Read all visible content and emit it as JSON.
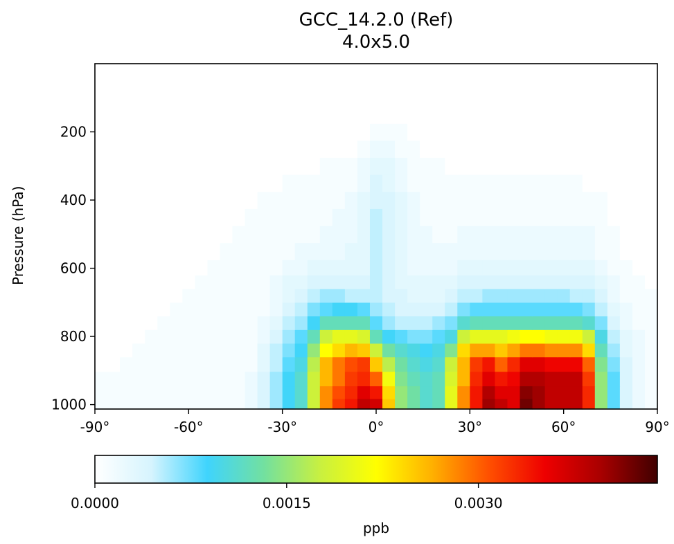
{
  "chart_data": {
    "type": "heatmap",
    "title": "GCC_14.2.0 (Ref)",
    "subtitle": "4.0x5.0",
    "ylabel": "Pressure (hPa)",
    "xlabel": "",
    "x_ticks": [
      "-90°",
      "-60°",
      "-30°",
      "0°",
      "30°",
      "60°",
      "90°"
    ],
    "x_tick_values": [
      -90,
      -60,
      -30,
      0,
      30,
      60,
      90
    ],
    "y_ticks": [
      "200",
      "400",
      "600",
      "800",
      "1000"
    ],
    "y_tick_values": [
      200,
      400,
      600,
      800,
      1000
    ],
    "x_range": [
      -90,
      90
    ],
    "y_range": [
      0,
      1013
    ],
    "y_inverted": true,
    "grid": false,
    "colormap": "WhGrYlRd",
    "colorbar": {
      "label": "ppb",
      "min": 0.0,
      "max": 0.0044,
      "tick_values": [
        0.0,
        0.0015,
        0.003
      ],
      "tick_labels": [
        "0.0000",
        "0.0015",
        "0.0030"
      ],
      "stops": [
        "#ffffff",
        "#d6f4fe",
        "#3fd4fd",
        "#72e0a0",
        "#c8f040",
        "#ffff00",
        "#ffb000",
        "#ff5000",
        "#ee0000",
        "#a80000",
        "#400000"
      ]
    },
    "columns_lat": [
      -88,
      -84,
      -80,
      -76,
      -72,
      -68,
      -64,
      -60,
      -56,
      -52,
      -48,
      -44,
      -40,
      -36,
      -32,
      -28,
      -24,
      -20,
      -16,
      -12,
      -8,
      -4,
      0,
      4,
      8,
      12,
      16,
      20,
      24,
      28,
      32,
      36,
      40,
      44,
      48,
      52,
      56,
      60,
      64,
      68,
      72,
      76,
      80,
      84,
      88
    ],
    "rows_pressure": [
      1000,
      965,
      925,
      880,
      840,
      800,
      760,
      720,
      680,
      640,
      600,
      550,
      500,
      450,
      400,
      350,
      300,
      250,
      200,
      150,
      100,
      50
    ],
    "values": [
      [
        0.0001,
        0.0001,
        0.0001,
        0.0001,
        0.0001,
        0.0001,
        0.0001,
        0.0001,
        0.0001,
        0.0001,
        0.0001,
        0.0001,
        0.0002,
        0.0004,
        0.0006,
        0.0009,
        0.0011,
        0.0018,
        0.0028,
        0.0032,
        0.0034,
        0.0038,
        0.0037,
        0.0025,
        0.0015,
        0.0013,
        0.0011,
        0.0012,
        0.002,
        0.0028,
        0.0034,
        0.004,
        0.0038,
        0.0036,
        0.0042,
        0.004,
        0.0038,
        0.0038,
        0.0038,
        0.0033,
        0.0015,
        0.0008,
        0.0004,
        0.0002,
        0.0001
      ],
      [
        0.0001,
        0.0001,
        0.0001,
        0.0001,
        0.0001,
        0.0001,
        0.0001,
        0.0001,
        0.0001,
        0.0001,
        0.0001,
        0.0001,
        0.0002,
        0.0004,
        0.0006,
        0.0009,
        0.0011,
        0.0018,
        0.0028,
        0.0031,
        0.0033,
        0.0036,
        0.0034,
        0.0024,
        0.0015,
        0.0013,
        0.0011,
        0.0012,
        0.002,
        0.0028,
        0.0034,
        0.0039,
        0.0036,
        0.0036,
        0.0041,
        0.004,
        0.0038,
        0.0038,
        0.0038,
        0.0033,
        0.0015,
        0.0008,
        0.0004,
        0.0002,
        0.0001
      ],
      [
        0.0001,
        0.0001,
        0.0001,
        0.0001,
        0.0001,
        0.0001,
        0.0001,
        0.0001,
        0.0001,
        0.0001,
        0.0001,
        0.0001,
        0.0002,
        0.0004,
        0.0006,
        0.0009,
        0.0011,
        0.0018,
        0.0026,
        0.0029,
        0.0032,
        0.0033,
        0.003,
        0.0021,
        0.0014,
        0.0012,
        0.0011,
        0.0012,
        0.0019,
        0.0026,
        0.0033,
        0.0036,
        0.0034,
        0.0035,
        0.0039,
        0.0039,
        0.0038,
        0.0038,
        0.0038,
        0.0032,
        0.0015,
        0.0008,
        0.0004,
        0.0002,
        0.0001
      ],
      [
        0.0,
        0.0,
        0.0001,
        0.0001,
        0.0001,
        0.0001,
        0.0001,
        0.0001,
        0.0001,
        0.0001,
        0.0001,
        0.0001,
        0.0001,
        0.0003,
        0.0005,
        0.0008,
        0.001,
        0.0017,
        0.0026,
        0.0029,
        0.0031,
        0.0032,
        0.0025,
        0.0017,
        0.0013,
        0.0011,
        0.001,
        0.0011,
        0.0018,
        0.0026,
        0.0032,
        0.0034,
        0.003,
        0.0033,
        0.0036,
        0.0036,
        0.0035,
        0.0035,
        0.0035,
        0.003,
        0.0014,
        0.0007,
        0.0004,
        0.0002,
        0.0001
      ],
      [
        0.0,
        0.0,
        0.0,
        0.0001,
        0.0001,
        0.0001,
        0.0001,
        0.0001,
        0.0001,
        0.0001,
        0.0001,
        0.0001,
        0.0001,
        0.0003,
        0.0005,
        0.0007,
        0.0009,
        0.0015,
        0.0022,
        0.0024,
        0.0026,
        0.0025,
        0.0018,
        0.0013,
        0.0011,
        0.001,
        0.0009,
        0.001,
        0.0014,
        0.0024,
        0.0027,
        0.0027,
        0.0025,
        0.0027,
        0.0029,
        0.0029,
        0.0028,
        0.0028,
        0.0028,
        0.0024,
        0.0012,
        0.0006,
        0.0003,
        0.0002,
        0.0001
      ],
      [
        0.0,
        0.0,
        0.0,
        0.0,
        0.0001,
        0.0001,
        0.0001,
        0.0001,
        0.0001,
        0.0001,
        0.0001,
        0.0001,
        0.0001,
        0.0002,
        0.0004,
        0.0006,
        0.0008,
        0.0012,
        0.0018,
        0.002,
        0.002,
        0.0019,
        0.0012,
        0.0009,
        0.0008,
        0.0007,
        0.0007,
        0.0008,
        0.001,
        0.0018,
        0.002,
        0.002,
        0.002,
        0.0021,
        0.0022,
        0.0022,
        0.0021,
        0.0021,
        0.0021,
        0.0018,
        0.001,
        0.0005,
        0.0003,
        0.0002,
        0.0001
      ],
      [
        0.0,
        0.0,
        0.0,
        0.0,
        0.0,
        0.0001,
        0.0001,
        0.0001,
        0.0001,
        0.0001,
        0.0001,
        0.0001,
        0.0001,
        0.0002,
        0.0003,
        0.0005,
        0.0006,
        0.0009,
        0.0012,
        0.0012,
        0.0012,
        0.0012,
        0.0008,
        0.0006,
        0.0005,
        0.0005,
        0.0005,
        0.0006,
        0.0007,
        0.0011,
        0.0012,
        0.0012,
        0.0012,
        0.0012,
        0.0012,
        0.0012,
        0.0012,
        0.0012,
        0.0012,
        0.0011,
        0.0007,
        0.0004,
        0.0002,
        0.0001,
        0.0001
      ],
      [
        0.0,
        0.0,
        0.0,
        0.0,
        0.0,
        0.0,
        0.0001,
        0.0001,
        0.0001,
        0.0001,
        0.0001,
        0.0001,
        0.0001,
        0.0001,
        0.0002,
        0.0004,
        0.0005,
        0.0007,
        0.0008,
        0.0009,
        0.0009,
        0.0008,
        0.0006,
        0.0005,
        0.0004,
        0.0004,
        0.0004,
        0.0004,
        0.0005,
        0.0007,
        0.0008,
        0.0008,
        0.0008,
        0.0008,
        0.0008,
        0.0008,
        0.0008,
        0.0008,
        0.0008,
        0.0007,
        0.0005,
        0.0003,
        0.0002,
        0.0001,
        0.0001
      ],
      [
        0.0,
        0.0,
        0.0,
        0.0,
        0.0,
        0.0,
        0.0,
        0.0001,
        0.0001,
        0.0001,
        0.0001,
        0.0001,
        0.0001,
        0.0001,
        0.0002,
        0.0003,
        0.0004,
        0.0005,
        0.0006,
        0.0006,
        0.0005,
        0.0005,
        0.0005,
        0.0004,
        0.0004,
        0.0003,
        0.0003,
        0.0003,
        0.0004,
        0.0005,
        0.0005,
        0.0006,
        0.0006,
        0.0006,
        0.0006,
        0.0006,
        0.0006,
        0.0006,
        0.0005,
        0.0005,
        0.0004,
        0.0002,
        0.0001,
        0.0001,
        0.0001
      ],
      [
        0.0,
        0.0,
        0.0,
        0.0,
        0.0,
        0.0,
        0.0,
        0.0,
        0.0001,
        0.0001,
        0.0001,
        0.0001,
        0.0001,
        0.0001,
        0.0002,
        0.0003,
        0.0003,
        0.0004,
        0.0004,
        0.0004,
        0.0004,
        0.0004,
        0.0005,
        0.0004,
        0.0003,
        0.0003,
        0.0003,
        0.0003,
        0.0003,
        0.0004,
        0.0004,
        0.0004,
        0.0004,
        0.0004,
        0.0004,
        0.0004,
        0.0004,
        0.0004,
        0.0004,
        0.0004,
        0.0003,
        0.0002,
        0.0001,
        0.0001,
        0.0
      ],
      [
        0.0,
        0.0,
        0.0,
        0.0,
        0.0,
        0.0,
        0.0,
        0.0,
        0.0,
        0.0001,
        0.0001,
        0.0001,
        0.0001,
        0.0001,
        0.0001,
        0.0002,
        0.0002,
        0.0003,
        0.0003,
        0.0003,
        0.0003,
        0.0003,
        0.0005,
        0.0004,
        0.0003,
        0.0002,
        0.0002,
        0.0002,
        0.0002,
        0.0003,
        0.0003,
        0.0003,
        0.0003,
        0.0003,
        0.0003,
        0.0003,
        0.0003,
        0.0003,
        0.0003,
        0.0003,
        0.0002,
        0.0001,
        0.0001,
        0.0,
        0.0
      ],
      [
        0.0,
        0.0,
        0.0,
        0.0,
        0.0,
        0.0,
        0.0,
        0.0,
        0.0,
        0.0,
        0.0001,
        0.0001,
        0.0001,
        0.0001,
        0.0001,
        0.0001,
        0.0002,
        0.0002,
        0.0002,
        0.0002,
        0.0003,
        0.0003,
        0.0005,
        0.0004,
        0.0003,
        0.0002,
        0.0002,
        0.0002,
        0.0002,
        0.0002,
        0.0002,
        0.0002,
        0.0002,
        0.0002,
        0.0002,
        0.0002,
        0.0002,
        0.0002,
        0.0002,
        0.0002,
        0.0001,
        0.0001,
        0.0,
        0.0,
        0.0
      ],
      [
        0.0,
        0.0,
        0.0,
        0.0,
        0.0,
        0.0,
        0.0,
        0.0,
        0.0,
        0.0,
        0.0,
        0.0001,
        0.0001,
        0.0001,
        0.0001,
        0.0001,
        0.0001,
        0.0001,
        0.0002,
        0.0002,
        0.0002,
        0.0003,
        0.0005,
        0.0004,
        0.0003,
        0.0002,
        0.0002,
        0.0001,
        0.0001,
        0.0002,
        0.0002,
        0.0002,
        0.0002,
        0.0002,
        0.0002,
        0.0002,
        0.0002,
        0.0002,
        0.0002,
        0.0002,
        0.0001,
        0.0001,
        0.0,
        0.0,
        0.0
      ],
      [
        0.0,
        0.0,
        0.0,
        0.0,
        0.0,
        0.0,
        0.0,
        0.0,
        0.0,
        0.0,
        0.0,
        0.0,
        0.0001,
        0.0001,
        0.0001,
        0.0001,
        0.0001,
        0.0001,
        0.0001,
        0.0002,
        0.0002,
        0.0003,
        0.0005,
        0.0004,
        0.0003,
        0.0002,
        0.0001,
        0.0001,
        0.0001,
        0.0001,
        0.0001,
        0.0001,
        0.0001,
        0.0001,
        0.0001,
        0.0001,
        0.0001,
        0.0001,
        0.0001,
        0.0001,
        0.0001,
        0.0,
        0.0,
        0.0,
        0.0
      ],
      [
        0.0,
        0.0,
        0.0,
        0.0,
        0.0,
        0.0,
        0.0,
        0.0,
        0.0,
        0.0,
        0.0,
        0.0,
        0.0,
        0.0001,
        0.0001,
        0.0001,
        0.0001,
        0.0001,
        0.0001,
        0.0001,
        0.0002,
        0.0003,
        0.0004,
        0.0004,
        0.0003,
        0.0002,
        0.0001,
        0.0001,
        0.0001,
        0.0001,
        0.0001,
        0.0001,
        0.0001,
        0.0001,
        0.0001,
        0.0001,
        0.0001,
        0.0001,
        0.0001,
        0.0001,
        0.0001,
        0.0,
        0.0,
        0.0,
        0.0
      ],
      [
        0.0,
        0.0,
        0.0,
        0.0,
        0.0,
        0.0,
        0.0,
        0.0,
        0.0,
        0.0,
        0.0,
        0.0,
        0.0,
        0.0,
        0.0,
        0.0001,
        0.0001,
        0.0001,
        0.0001,
        0.0001,
        0.0001,
        0.0002,
        0.0004,
        0.0003,
        0.0002,
        0.0001,
        0.0001,
        0.0001,
        0.0001,
        0.0001,
        0.0001,
        0.0001,
        0.0001,
        0.0001,
        0.0001,
        0.0001,
        0.0001,
        0.0001,
        0.0001,
        0.0,
        0.0,
        0.0,
        0.0,
        0.0,
        0.0
      ],
      [
        0.0,
        0.0,
        0.0,
        0.0,
        0.0,
        0.0,
        0.0,
        0.0,
        0.0,
        0.0,
        0.0,
        0.0,
        0.0,
        0.0,
        0.0,
        0.0,
        0.0,
        0.0,
        0.0001,
        0.0001,
        0.0001,
        0.0002,
        0.0003,
        0.0003,
        0.0002,
        0.0001,
        0.0001,
        0.0001,
        0.0,
        0.0,
        0.0,
        0.0,
        0.0,
        0.0,
        0.0,
        0.0,
        0.0,
        0.0,
        0.0,
        0.0,
        0.0,
        0.0,
        0.0,
        0.0,
        0.0
      ],
      [
        0.0,
        0.0,
        0.0,
        0.0,
        0.0,
        0.0,
        0.0,
        0.0,
        0.0,
        0.0,
        0.0,
        0.0,
        0.0,
        0.0,
        0.0,
        0.0,
        0.0,
        0.0,
        0.0,
        0.0,
        0.0,
        0.0001,
        0.0002,
        0.0002,
        0.0001,
        0.0001,
        0.0,
        0.0,
        0.0,
        0.0,
        0.0,
        0.0,
        0.0,
        0.0,
        0.0,
        0.0,
        0.0,
        0.0,
        0.0,
        0.0,
        0.0,
        0.0,
        0.0,
        0.0,
        0.0
      ],
      [
        0.0,
        0.0,
        0.0,
        0.0,
        0.0,
        0.0,
        0.0,
        0.0,
        0.0,
        0.0,
        0.0,
        0.0,
        0.0,
        0.0,
        0.0,
        0.0,
        0.0,
        0.0,
        0.0,
        0.0,
        0.0,
        0.0,
        0.0001,
        0.0001,
        0.0001,
        0.0,
        0.0,
        0.0,
        0.0,
        0.0,
        0.0,
        0.0,
        0.0,
        0.0,
        0.0,
        0.0,
        0.0,
        0.0,
        0.0,
        0.0,
        0.0,
        0.0,
        0.0,
        0.0,
        0.0
      ],
      [
        0.0,
        0.0,
        0.0,
        0.0,
        0.0,
        0.0,
        0.0,
        0.0,
        0.0,
        0.0,
        0.0,
        0.0,
        0.0,
        0.0,
        0.0,
        0.0,
        0.0,
        0.0,
        0.0,
        0.0,
        0.0,
        0.0,
        0.0,
        0.0,
        0.0,
        0.0,
        0.0,
        0.0,
        0.0,
        0.0,
        0.0,
        0.0,
        0.0,
        0.0,
        0.0,
        0.0,
        0.0,
        0.0,
        0.0,
        0.0,
        0.0,
        0.0,
        0.0,
        0.0,
        0.0
      ],
      [
        0.0,
        0.0,
        0.0,
        0.0,
        0.0,
        0.0,
        0.0,
        0.0,
        0.0,
        0.0,
        0.0,
        0.0,
        0.0,
        0.0,
        0.0,
        0.0,
        0.0,
        0.0,
        0.0,
        0.0,
        0.0,
        0.0,
        0.0,
        0.0,
        0.0,
        0.0,
        0.0,
        0.0,
        0.0,
        0.0,
        0.0,
        0.0,
        0.0,
        0.0,
        0.0,
        0.0,
        0.0,
        0.0,
        0.0,
        0.0,
        0.0,
        0.0,
        0.0,
        0.0,
        0.0
      ],
      [
        0.0,
        0.0,
        0.0,
        0.0,
        0.0,
        0.0,
        0.0,
        0.0,
        0.0,
        0.0,
        0.0,
        0.0,
        0.0,
        0.0,
        0.0,
        0.0,
        0.0,
        0.0,
        0.0,
        0.0,
        0.0,
        0.0,
        0.0,
        0.0,
        0.0,
        0.0,
        0.0,
        0.0,
        0.0,
        0.0,
        0.0,
        0.0,
        0.0,
        0.0,
        0.0,
        0.0,
        0.0,
        0.0,
        0.0,
        0.0,
        0.0,
        0.0,
        0.0,
        0.0,
        0.0
      ]
    ]
  }
}
